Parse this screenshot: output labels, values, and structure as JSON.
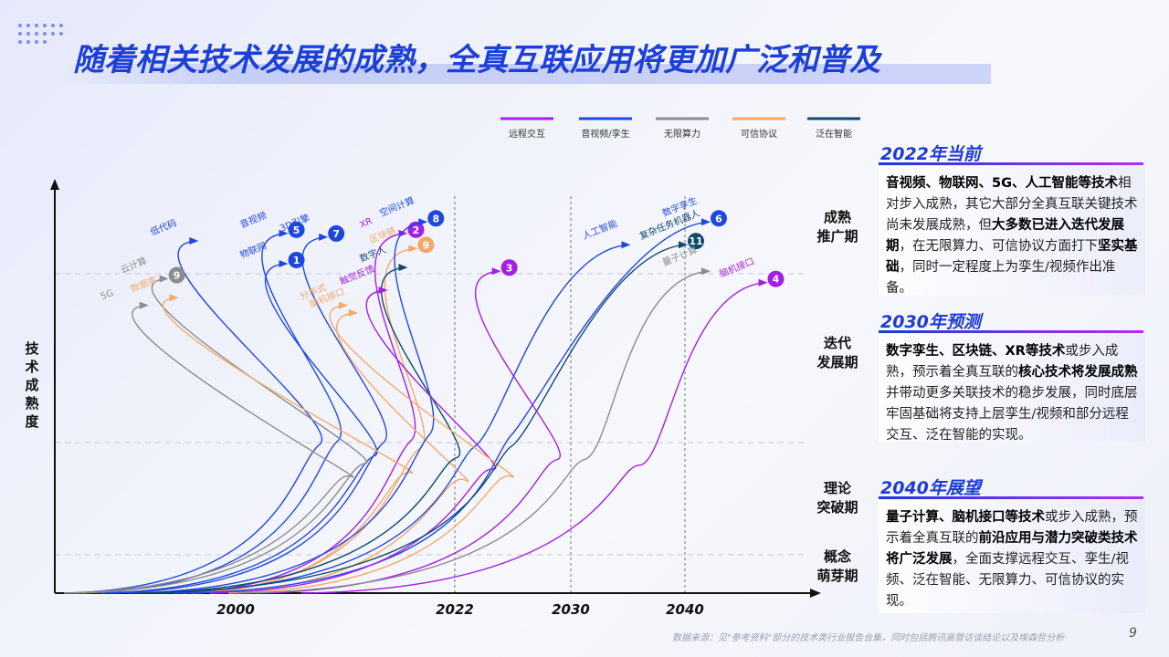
{
  "title": "随着相关技术发展的成熟，全真互联应用将更加广泛和普及",
  "colors": {
    "remote": "#a31fe6",
    "av": "#1f47e0",
    "compute": "#8c8c8c",
    "trust": "#f5a86a",
    "ai": "#0f4a6e",
    "accent": "#1d3ad6"
  },
  "chart_data": {
    "type": "line",
    "title": "",
    "ylabel": "技\n术\n成\n熟\n度",
    "xlabel": "",
    "x_ticks": [
      "2000",
      "2022",
      "2030",
      "2040"
    ],
    "stages": [
      "概念\n萌芽期",
      "理论\n突破期",
      "迭代\n发展期",
      "成熟\n推广期"
    ],
    "legend": [
      {
        "name": "远程交互",
        "color_key": "remote"
      },
      {
        "name": "音视频/孪生",
        "color_key": "av"
      },
      {
        "name": "无限算力",
        "color_key": "compute"
      },
      {
        "name": "可信协议",
        "color_key": "trust"
      },
      {
        "name": "泛在智能",
        "color_key": "ai"
      }
    ],
    "series": [
      {
        "name": "音视频",
        "category": "av",
        "num": "5",
        "x_end": 2005,
        "y_end": 0.95
      },
      {
        "name": "低代码",
        "category": "av",
        "num": "",
        "x_end": 1996,
        "y_end": 0.93
      },
      {
        "name": "物联网",
        "category": "av",
        "num": "1",
        "x_end": 2005,
        "y_end": 0.87
      },
      {
        "name": "3D引擎",
        "category": "av",
        "num": "7",
        "x_end": 2009,
        "y_end": 0.94
      },
      {
        "name": "XR",
        "category": "remote",
        "num": "2",
        "x_end": 2017,
        "y_end": 0.95
      },
      {
        "name": "区块链",
        "category": "trust",
        "num": "9",
        "x_end": 2018,
        "y_end": 0.91
      },
      {
        "name": "云计算",
        "category": "compute",
        "num": "9",
        "x_end": 1993,
        "y_end": 0.83
      },
      {
        "name": "5G",
        "category": "compute",
        "num": "",
        "x_end": 1991,
        "y_end": 0.76
      },
      {
        "name": "数据库",
        "category": "trust",
        "num": "",
        "x_end": 1994,
        "y_end": 0.78
      },
      {
        "name": "脑机接口",
        "category": "trust",
        "num": "",
        "x_end": 2012,
        "y_end": 0.74
      },
      {
        "name": "空间计算",
        "category": "av",
        "num": "8",
        "x_end": 2019,
        "y_end": 0.98
      },
      {
        "name": "数字人",
        "category": "ai",
        "num": "",
        "x_end": 2017,
        "y_end": 0.86
      },
      {
        "name": "人工智能",
        "category": "av",
        "num": "",
        "x_end": 2035,
        "y_end": 0.92
      },
      {
        "name": "数字孪生",
        "category": "av",
        "num": "6",
        "x_end": 2042,
        "y_end": 0.98
      },
      {
        "name": "触觉反馈",
        "category": "remote",
        "num": "",
        "x_end": 2015,
        "y_end": 0.8
      },
      {
        "name": "分布式",
        "category": "trust",
        "num": "",
        "x_end": 2011,
        "y_end": 0.76
      },
      {
        "name": "复杂任务机器人",
        "category": "ai",
        "num": "11",
        "x_end": 2040,
        "y_end": 0.92
      },
      {
        "name": "",
        "category": "remote",
        "num": "3",
        "x_end": 2025,
        "y_end": 0.85
      },
      {
        "name": "量子计算",
        "category": "compute",
        "num": "",
        "x_end": 2042,
        "y_end": 0.85
      },
      {
        "name": "脑机接口",
        "category": "remote",
        "num": "4",
        "x_end": 2047,
        "y_end": 0.82
      }
    ]
  },
  "panels": [
    {
      "heading": "2022年当前",
      "parts": [
        {
          "t": "音视频、物联网、5G、人工智能等技术",
          "b": true
        },
        {
          "t": "相对步入成熟，其它大部分全真互联关键技术尚未发展成熟，但",
          "b": false
        },
        {
          "t": "大多数已进入迭代发展期",
          "b": true
        },
        {
          "t": "，在无限算力、可信协议方面打下",
          "b": false
        },
        {
          "t": "坚实基础",
          "b": true
        },
        {
          "t": "，同时一定程度上为孪生/视频作出准备。",
          "b": false
        }
      ]
    },
    {
      "heading": "2030年预测",
      "parts": [
        {
          "t": "数字孪生、区块链、XR等技术",
          "b": true
        },
        {
          "t": "或步入成熟，预示着全真互联的",
          "b": false
        },
        {
          "t": "核心技术将发展成熟",
          "b": true
        },
        {
          "t": "并带动更多关联技术的稳步发展，同时底层牢固基础将支持上层孪生/视频和部分远程交互、泛在智能的实现。",
          "b": false
        }
      ]
    },
    {
      "heading": "2040年展望",
      "parts": [
        {
          "t": "量子计算、脑机接口等技术",
          "b": true
        },
        {
          "t": "或步入成熟，预示着全真互联的",
          "b": false
        },
        {
          "t": "前沿应用与潜力突破类技术将广泛发展",
          "b": true
        },
        {
          "t": "，全面支撑远程交互、孪生/视频、泛在智能、无限算力、可信协议的实现。",
          "b": false
        }
      ]
    }
  ],
  "source": "数据来源：见\"参考资料\"部分的技术类行业报告合集，同时包括腾讯高管访谈结论以及埃森哲分析",
  "page_number": "9"
}
